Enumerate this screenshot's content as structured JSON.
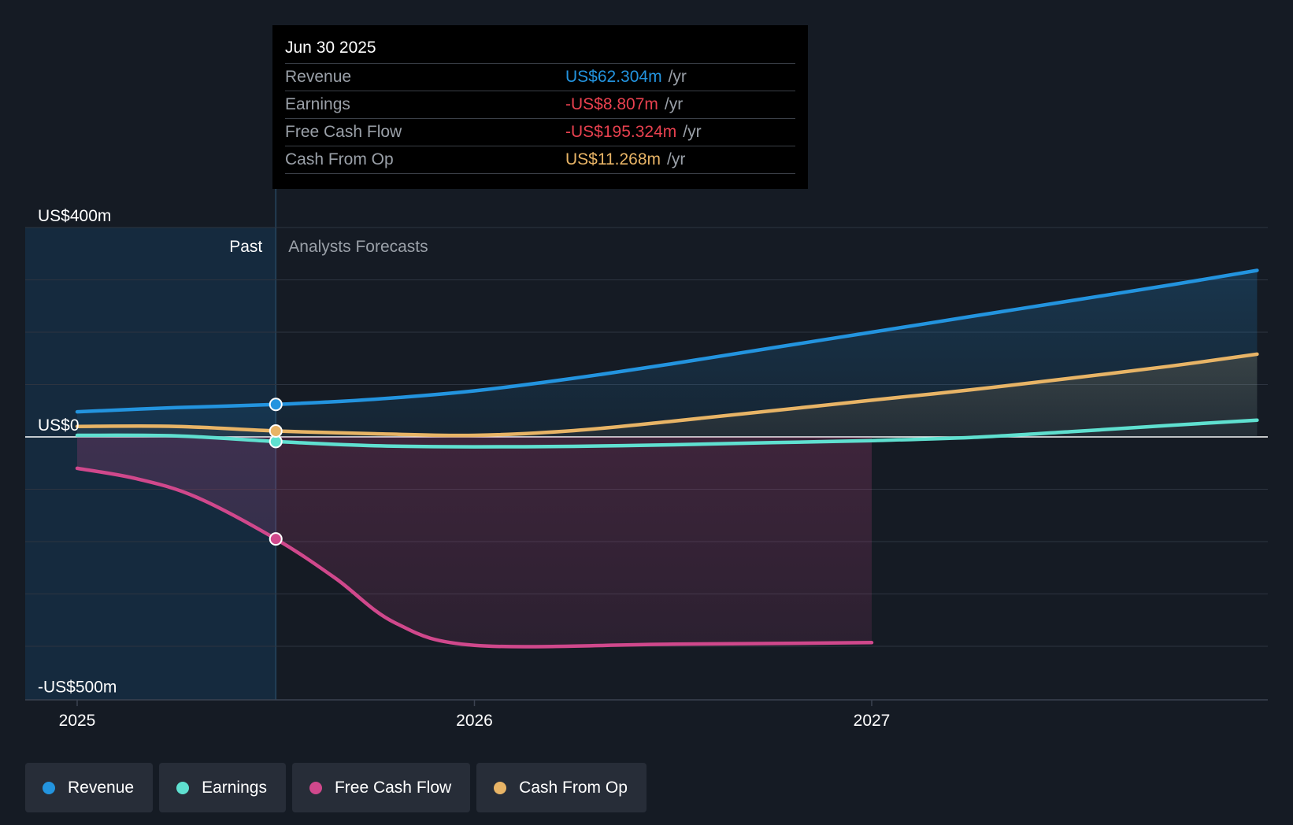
{
  "colors": {
    "revenue": "#2394df",
    "earnings": "#5fe0d0",
    "fcf": "#d0488c",
    "cfo": "#e8b466",
    "background": "#151b24",
    "past_region": "#152a3e"
  },
  "labels": {
    "past": "Past",
    "forecast": "Analysts Forecasts"
  },
  "tooltip": {
    "date": "Jun 30 2025",
    "rows": [
      {
        "label": "Revenue",
        "value": "US$62.304m",
        "unit": "/yr",
        "color": "#2394df"
      },
      {
        "label": "Earnings",
        "value": "-US$8.807m",
        "unit": "/yr",
        "color": "#e8414f"
      },
      {
        "label": "Free Cash Flow",
        "value": "-US$195.324m",
        "unit": "/yr",
        "color": "#e8414f"
      },
      {
        "label": "Cash From Op",
        "value": "US$11.268m",
        "unit": "/yr",
        "color": "#e8b466"
      }
    ]
  },
  "legend": [
    {
      "label": "Revenue",
      "icon": "circle",
      "color": "#2394df"
    },
    {
      "label": "Earnings",
      "icon": "circle",
      "color": "#5fe0d0"
    },
    {
      "label": "Free Cash Flow",
      "icon": "circle",
      "color": "#d0488c"
    },
    {
      "label": "Cash From Op",
      "icon": "circle",
      "color": "#e8b466"
    }
  ],
  "chart_data": {
    "type": "line",
    "title": "",
    "xlabel": "",
    "ylabel": "",
    "x_ticks": [
      2025,
      2026,
      2027
    ],
    "y_ticks": [
      {
        "value": 400,
        "label": "US$400m"
      },
      {
        "value": 0,
        "label": "US$0"
      },
      {
        "value": -500,
        "label": "-US$500m"
      }
    ],
    "xlim": [
      2024.87,
      2027.97
    ],
    "ylim": [
      -500,
      400
    ],
    "grid": true,
    "past_until": 2025.5,
    "highlight_x": 2025.5,
    "series": [
      {
        "name": "Revenue",
        "key": "revenue",
        "unit": "US$m",
        "x": [
          2025.0,
          2025.25,
          2025.5,
          2025.75,
          2026.0,
          2026.25,
          2026.5,
          2026.75,
          2027.0,
          2027.25,
          2027.5,
          2027.75,
          2027.97
        ],
        "y": [
          48,
          56,
          62,
          72,
          88,
          112,
          140,
          170,
          200,
          230,
          260,
          290,
          318
        ]
      },
      {
        "name": "Earnings",
        "key": "earnings",
        "unit": "US$m",
        "x": [
          2025.0,
          2025.25,
          2025.5,
          2025.75,
          2026.0,
          2026.25,
          2026.5,
          2026.75,
          2027.0,
          2027.25,
          2027.5,
          2027.75,
          2027.97
        ],
        "y": [
          3,
          2,
          -8.8,
          -17,
          -19,
          -18,
          -15,
          -11,
          -7,
          -1,
          10,
          22,
          32
        ]
      },
      {
        "name": "Free Cash Flow",
        "key": "fcf",
        "unit": "US$m",
        "x": [
          2025.0,
          2025.15,
          2025.3,
          2025.5,
          2025.65,
          2025.8,
          2026.0,
          2026.5,
          2027.0
        ],
        "y": [
          -60,
          -80,
          -115,
          -195,
          -270,
          -355,
          -398,
          -396,
          -393
        ]
      },
      {
        "name": "Cash From Op",
        "key": "cfo",
        "unit": "US$m",
        "x": [
          2025.0,
          2025.25,
          2025.5,
          2025.75,
          2026.0,
          2026.25,
          2026.5,
          2026.75,
          2027.0,
          2027.25,
          2027.5,
          2027.75,
          2027.97
        ],
        "y": [
          20,
          20,
          11.3,
          6,
          3,
          12,
          30,
          50,
          70,
          90,
          112,
          135,
          158
        ]
      }
    ]
  }
}
